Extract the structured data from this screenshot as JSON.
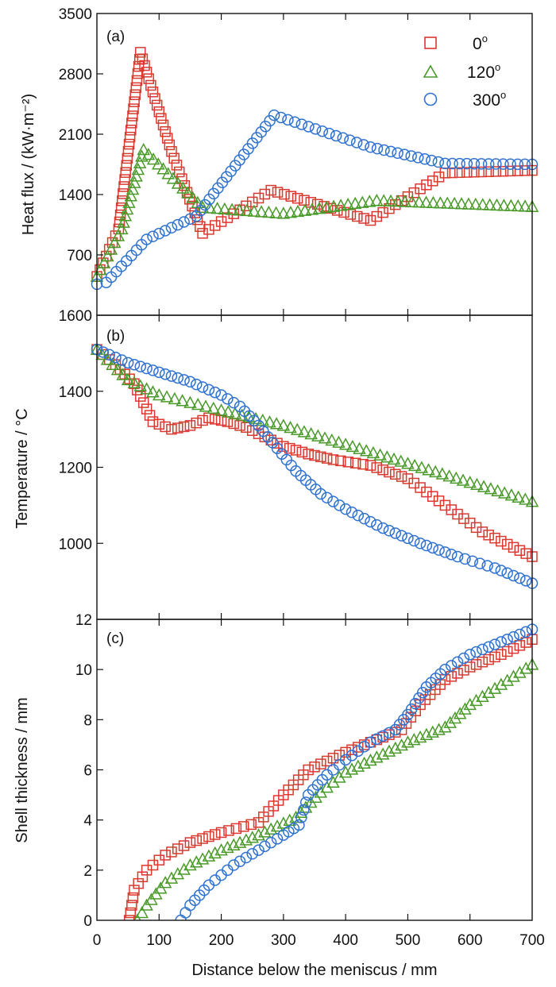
{
  "chart_data": {
    "type": "scatter",
    "xlabel": "Distance below the meniscus / mm",
    "xlim": [
      0,
      700
    ],
    "xticks": [
      0,
      100,
      200,
      300,
      400,
      500,
      600,
      700
    ],
    "legend": {
      "placement": "top-right",
      "entries": [
        {
          "label": "0",
          "superscript": "o",
          "marker": "square",
          "color": "#d93a30"
        },
        {
          "label": "120",
          "superscript": "o",
          "marker": "triangle",
          "color": "#4a9a2a"
        },
        {
          "label": "300",
          "superscript": "o",
          "marker": "circle",
          "color": "#2f72d0"
        }
      ]
    },
    "panels": [
      {
        "tag": "(a)",
        "ylabel": "Heat flux / (kW·m⁻²)",
        "ylim": [
          0,
          3500
        ],
        "yticks": [
          700,
          1400,
          2100,
          2800,
          3500
        ],
        "series": [
          {
            "name": "0°",
            "marker": "square",
            "color": "#d93a30",
            "x": [
              0,
              35,
              70,
              120,
              170,
              280,
              440,
              560,
              700
            ],
            "y": [
              450,
              1000,
              3050,
              1900,
              950,
              1450,
              1100,
              1650,
              1680
            ]
          },
          {
            "name": "120°",
            "marker": "triangle",
            "color": "#4a9a2a",
            "x": [
              0,
              40,
              75,
              170,
              300,
              450,
              700
            ],
            "y": [
              450,
              1000,
              1920,
              1250,
              1180,
              1330,
              1260
            ]
          },
          {
            "name": "300°",
            "marker": "circle",
            "color": "#2f72d0",
            "x": [
              0,
              15,
              80,
              160,
              285,
              440,
              560,
              700
            ],
            "y": [
              360,
              380,
              880,
              1150,
              2320,
              1950,
              1760,
              1750
            ]
          }
        ]
      },
      {
        "tag": "(b)",
        "ylabel": "Temperature / °C",
        "ylim": [
          800,
          1600
        ],
        "yticks": [
          1000,
          1200,
          1400,
          1600
        ],
        "series": [
          {
            "name": "0°",
            "marker": "square",
            "color": "#d93a30",
            "x": [
              0,
              30,
              60,
              90,
              120,
              150,
              180,
              210,
              240,
              270,
              300,
              340,
              380,
              440,
              500,
              560,
              620,
              700
            ],
            "y": [
              1510,
              1470,
              1420,
              1320,
              1300,
              1310,
              1330,
              1320,
              1305,
              1280,
              1255,
              1235,
              1220,
              1205,
              1170,
              1100,
              1030,
              965
            ]
          },
          {
            "name": "120°",
            "marker": "triangle",
            "color": "#4a9a2a",
            "x": [
              0,
              50,
              100,
              150,
              200,
              300,
              400,
              500,
              600,
              700
            ],
            "y": [
              1510,
              1430,
              1390,
              1370,
              1350,
              1310,
              1260,
              1210,
              1160,
              1110
            ]
          },
          {
            "name": "300°",
            "marker": "circle",
            "color": "#2f72d0",
            "x": [
              0,
              50,
              100,
              150,
              200,
              230,
              260,
              290,
              320,
              360,
              400,
              460,
              520,
              580,
              640,
              700
            ],
            "y": [
              1510,
              1475,
              1450,
              1425,
              1390,
              1360,
              1310,
              1250,
              1190,
              1130,
              1090,
              1040,
              1000,
              965,
              935,
              895
            ]
          }
        ]
      },
      {
        "tag": "(c)",
        "ylabel": "Shell thickness / mm",
        "ylim": [
          0,
          12
        ],
        "yticks": [
          0,
          2,
          4,
          6,
          8,
          10,
          12
        ],
        "series": [
          {
            "name": "0°",
            "marker": "square",
            "color": "#d93a30",
            "x": [
              52,
              60,
              80,
              110,
              150,
              200,
              260,
              300,
              340,
              400,
              440,
              490,
              520,
              560,
              600,
              650,
              700
            ],
            "y": [
              0,
              1.2,
              2.0,
              2.6,
              3.1,
              3.5,
              3.9,
              5.0,
              6.0,
              6.7,
              7.1,
              7.6,
              8.6,
              9.6,
              10.1,
              10.6,
              11.2
            ]
          },
          {
            "name": "120°",
            "marker": "triangle",
            "color": "#4a9a2a",
            "x": [
              65,
              80,
              110,
              150,
              200,
              260,
              320,
              360,
              400,
              450,
              500,
              560,
              600,
              650,
              700
            ],
            "y": [
              0,
              0.6,
              1.5,
              2.2,
              2.8,
              3.4,
              4.1,
              5.1,
              5.9,
              6.5,
              7.1,
              7.7,
              8.6,
              9.4,
              10.2
            ]
          },
          {
            "name": "300°",
            "marker": "circle",
            "color": "#2f72d0",
            "x": [
              135,
              150,
              180,
              220,
              260,
              300,
              325,
              340,
              370,
              400,
              440,
              480,
              500,
              530,
              560,
              600,
              650,
              700
            ],
            "y": [
              0,
              0.6,
              1.4,
              2.2,
              2.8,
              3.4,
              3.8,
              5.0,
              5.8,
              6.4,
              7.1,
              7.6,
              8.2,
              9.3,
              10.0,
              10.6,
              11.1,
              11.6
            ]
          }
        ]
      }
    ]
  }
}
